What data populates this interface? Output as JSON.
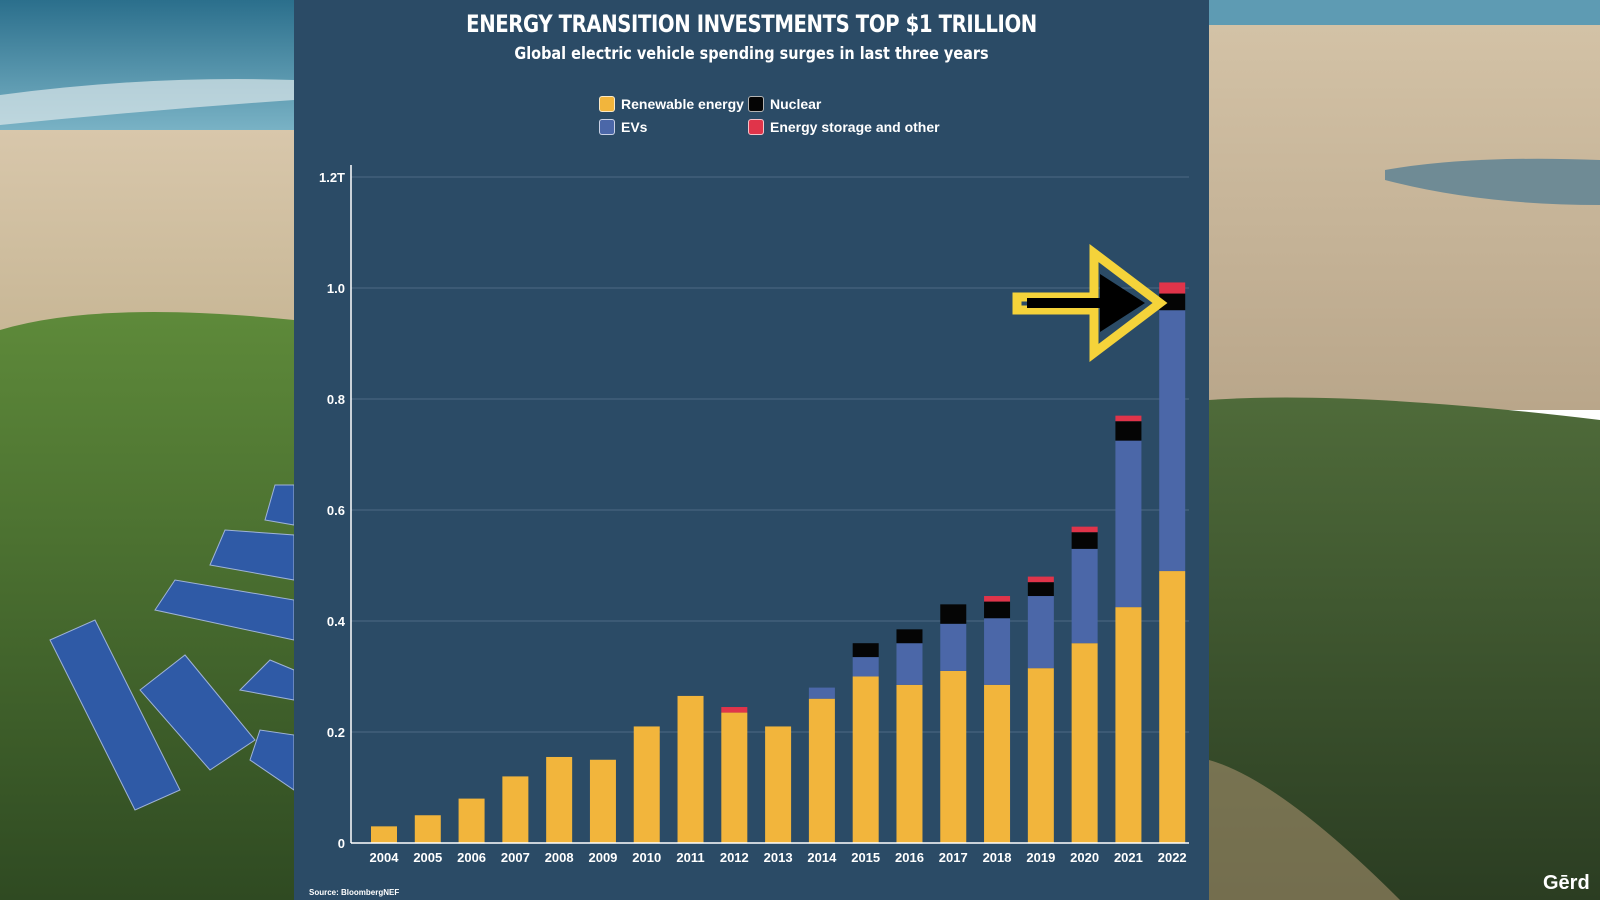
{
  "colors": {
    "renewable": "#f2b53c",
    "evs": "#4b67a8",
    "nuclear": "#050505",
    "storage": "#e0344a",
    "panel": "#2b4b66",
    "arrow_outline": "#f5d33a"
  },
  "icons": {
    "callout": "arrow-right-icon"
  },
  "source": "Source: BloombergNEF",
  "brand": "Gērd",
  "chart_data": {
    "type": "bar",
    "stacked": true,
    "title": "ENERGY TRANSITION INVESTMENTS TOP $1 TRILLION",
    "subtitle": "Global electric vehicle spending surges in last three years",
    "xlabel": "",
    "ylabel": "",
    "ylim": [
      0,
      1.2
    ],
    "yticks": [
      {
        "value": 0,
        "label": "0"
      },
      {
        "value": 0.2,
        "label": "0.2"
      },
      {
        "value": 0.4,
        "label": "0.4"
      },
      {
        "value": 0.6,
        "label": "0.6"
      },
      {
        "value": 0.8,
        "label": "0.8"
      },
      {
        "value": 1.0,
        "label": "1.0"
      },
      {
        "value": 1.2,
        "label": "1.2T"
      }
    ],
    "grid": true,
    "legend_position": "top-center",
    "categories": [
      "2004",
      "2005",
      "2006",
      "2007",
      "2008",
      "2009",
      "2010",
      "2011",
      "2012",
      "2013",
      "2014",
      "2015",
      "2016",
      "2017",
      "2018",
      "2019",
      "2020",
      "2021",
      "2022"
    ],
    "series": [
      {
        "name": "Renewable energy",
        "color_key": "renewable",
        "values": [
          0.03,
          0.05,
          0.08,
          0.12,
          0.155,
          0.15,
          0.21,
          0.265,
          0.235,
          0.21,
          0.26,
          0.3,
          0.285,
          0.31,
          0.285,
          0.315,
          0.36,
          0.425,
          0.49
        ]
      },
      {
        "name": "EVs",
        "color_key": "evs",
        "values": [
          0,
          0,
          0,
          0,
          0,
          0,
          0,
          0,
          0,
          0,
          0.02,
          0.035,
          0.075,
          0.085,
          0.12,
          0.13,
          0.17,
          0.3,
          0.47
        ]
      },
      {
        "name": "Nuclear",
        "color_key": "nuclear",
        "values": [
          0,
          0,
          0,
          0,
          0,
          0,
          0,
          0,
          0,
          0,
          0,
          0.025,
          0.025,
          0.035,
          0.03,
          0.025,
          0.03,
          0.035,
          0.03
        ]
      },
      {
        "name": "Energy storage and other",
        "color_key": "storage",
        "values": [
          0,
          0,
          0,
          0,
          0,
          0,
          0,
          0,
          0.01,
          0,
          0,
          0,
          0,
          0,
          0.01,
          0.01,
          0.01,
          0.01,
          0.02
        ]
      }
    ]
  }
}
